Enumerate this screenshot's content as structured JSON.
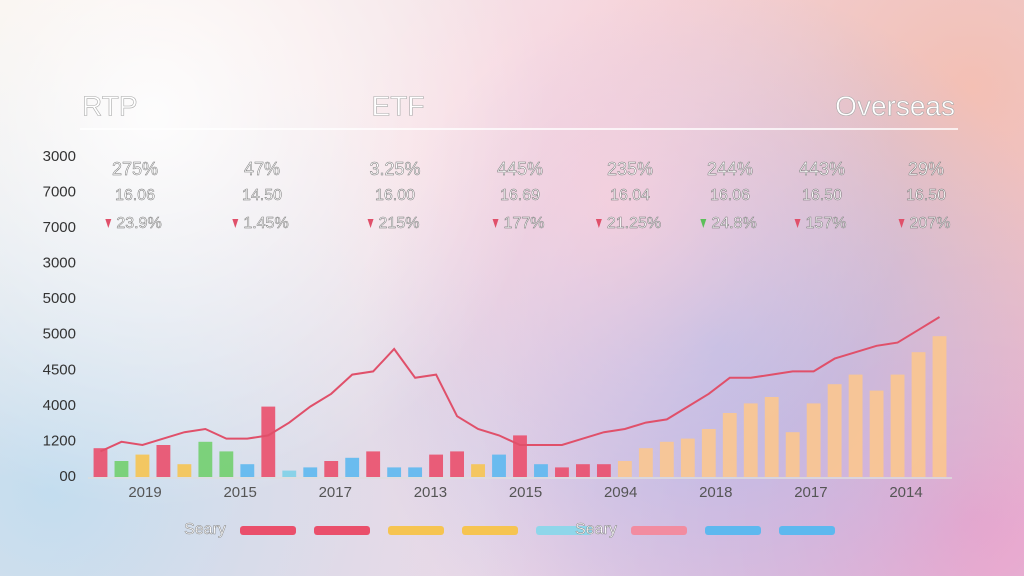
{
  "header": {
    "left": "RTP",
    "center": "ETF",
    "right": "Overseas"
  },
  "stats": [
    {
      "percent": "275%",
      "price": "16.06",
      "change": "23.9%",
      "arrow_color": "#e0506a"
    },
    {
      "percent": "47%",
      "price": "14.50",
      "change": "1.45%",
      "arrow_color": "#e0506a"
    },
    {
      "percent": "3.25%",
      "price": "16.00",
      "change": "215%",
      "arrow_color": "#e0506a"
    },
    {
      "percent": "445%",
      "price": "16.69",
      "change": "177%",
      "arrow_color": "#e0506a"
    },
    {
      "percent": "235%",
      "price": "16.04",
      "change": "21.25%",
      "arrow_color": "#e0506a"
    },
    {
      "percent": "244%",
      "price": "16.06",
      "change": "24.8%",
      "arrow_color": "#5cbf5a"
    },
    {
      "percent": "443%",
      "price": "16.50",
      "change": "157%",
      "arrow_color": "#e0506a"
    },
    {
      "percent": "29%",
      "price": "16.50",
      "change": "207%",
      "arrow_color": "#e0506a"
    }
  ],
  "chart_data": {
    "type": "bar",
    "y_axis_labels": [
      "3000",
      "7000",
      "7000",
      "3000",
      "5000",
      "5000",
      "4500",
      "4000",
      "1200",
      "00"
    ],
    "x_labels": [
      "2019",
      "2015",
      "2017",
      "2013",
      "2015",
      "2094",
      "2018",
      "2017",
      "2014"
    ],
    "categories": [
      null,
      null,
      null,
      null,
      null,
      null,
      null,
      null,
      null,
      null,
      null,
      null,
      null,
      null,
      null,
      null,
      null,
      null,
      null,
      null,
      null,
      null,
      null,
      null,
      null,
      null,
      null,
      null,
      null,
      null,
      null,
      null,
      null,
      null,
      null,
      null,
      null,
      null,
      null,
      null,
      null
    ],
    "values": [
      9,
      5,
      7,
      10,
      4,
      11,
      8,
      4,
      22,
      2,
      3,
      5,
      6,
      8,
      3,
      3,
      7,
      8,
      4,
      7,
      13,
      4,
      3,
      4,
      4,
      5,
      9,
      11,
      12,
      15,
      20,
      23,
      25,
      14,
      23,
      29,
      32,
      27,
      32,
      39,
      44
    ],
    "colors": [
      "#ea4f6b",
      "#72cf6e",
      "#f6c451",
      "#ea4f6b",
      "#f6c451",
      "#72cf6e",
      "#72cf6e",
      "#5db8ef",
      "#ea4f6b",
      "#7fd0e8",
      "#5db8ef",
      "#ea4f6b",
      "#5db8ef",
      "#ea4f6b",
      "#5db8ef",
      "#5db8ef",
      "#ea4f6b",
      "#ea4f6b",
      "#f6c451",
      "#5db8ef",
      "#ea4f6b",
      "#5db8ef",
      "#ea4f6b",
      "#ea4f6b",
      "#ea4f6b",
      "#fbc68f",
      "#fbc68f",
      "#fbc68f",
      "#fbc68f",
      "#fbc68f",
      "#fbc68f",
      "#fbc68f",
      "#fbc68f",
      "#fbc68f",
      "#fbc68f",
      "#fbc68f",
      "#fbc68f",
      "#fbc68f",
      "#fbc68f",
      "#fbc68f",
      "#fbc68f"
    ],
    "ylim": [
      0,
      100
    ],
    "line": {
      "color": "#e0506a",
      "values": [
        8,
        11,
        10,
        12,
        14,
        15,
        12,
        12,
        13,
        17,
        22,
        26,
        32,
        33,
        40,
        31,
        32,
        19,
        15,
        13,
        10,
        10,
        10,
        12,
        14,
        15,
        17,
        18,
        22,
        26,
        31,
        31,
        32,
        33,
        33,
        37,
        39,
        41,
        42,
        46,
        50
      ]
    },
    "legend": [
      {
        "label": "Seary",
        "swatches": [
          "#ea4f6b",
          "#ea4f6b",
          "#f6c451",
          "#f6c451",
          "#8fd6ea"
        ]
      },
      {
        "label": "Seary",
        "swatches": [
          "#f28ca0",
          "#5db8ef",
          "#5db8ef"
        ]
      }
    ]
  }
}
